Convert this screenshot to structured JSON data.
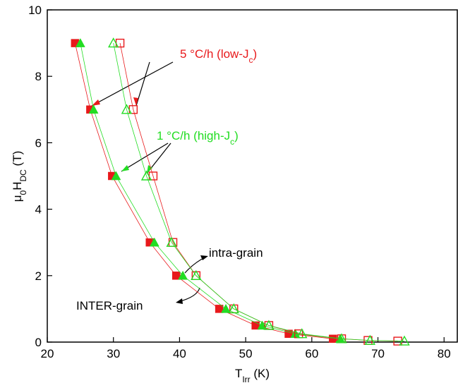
{
  "chart_data": {
    "type": "scatter",
    "x_label": [
      "T",
      "Irr",
      " (K)"
    ],
    "y_label": [
      "μ",
      "0",
      "H",
      "DC",
      " (T)"
    ],
    "xlim": [
      20,
      82
    ],
    "ylim": [
      0,
      10
    ],
    "xticks": [
      20,
      30,
      40,
      50,
      60,
      70,
      80
    ],
    "yticks": [
      0,
      2,
      4,
      6,
      8,
      10
    ],
    "series": [
      {
        "color": "#e8191b",
        "marker": "square",
        "filled": true,
        "x": [
          24.2,
          26.5,
          29.8,
          35.5,
          39.5,
          46,
          51.5,
          56.5,
          63.2
        ],
        "values": [
          9,
          7,
          5,
          3,
          2,
          1,
          0.5,
          0.25,
          0.1
        ]
      },
      {
        "color": "#22dd22",
        "marker": "triangle",
        "filled": true,
        "x": [
          25,
          27,
          30.4,
          36.2,
          40.5,
          47,
          52.5,
          57.5,
          64.3
        ],
        "values": [
          9,
          7,
          5,
          3,
          2,
          1,
          0.5,
          0.25,
          0.1
        ]
      },
      {
        "color": "#e8191b",
        "marker": "square",
        "filled": false,
        "x": [
          31,
          33,
          36,
          39,
          42.5,
          48.2,
          53.5,
          58,
          64.5,
          68.5,
          73
        ],
        "values": [
          9,
          7,
          5,
          3,
          2,
          1,
          0.5,
          0.25,
          0.1,
          0.05,
          0.03
        ]
      },
      {
        "color": "#22dd22",
        "marker": "triangle",
        "filled": false,
        "x": [
          30,
          32,
          35,
          38.8,
          42.5,
          48.2,
          53.5,
          58.5,
          64.5,
          68.8,
          74
        ],
        "values": [
          9,
          7,
          5,
          3,
          2,
          1,
          0.5,
          0.25,
          0.1,
          0.05,
          0.03
        ]
      }
    ],
    "annotations": [
      {
        "text": [
          "5 °C/h (low-J",
          "c",
          ")"
        ],
        "color": "#e8191b"
      },
      {
        "text": [
          "1 °C/h (high-J",
          "c",
          ")"
        ],
        "color": "#22dd22"
      },
      {
        "text": [
          "intra-grain"
        ],
        "color": "#000000"
      },
      {
        "text": [
          "INTER-grain"
        ],
        "color": "#000000"
      }
    ]
  }
}
